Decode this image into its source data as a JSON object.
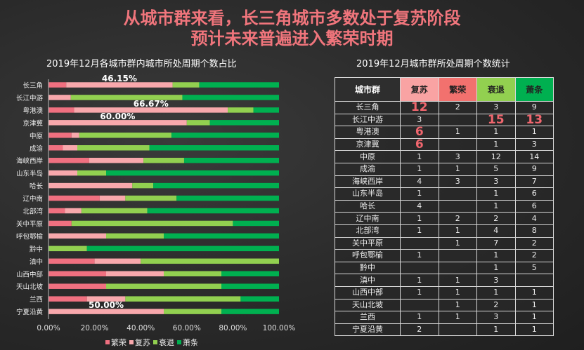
{
  "title_lines": [
    "从城市群来看，长三角城市多数处于复苏阶段",
    "预计未来普遍进入繁荣时期"
  ],
  "chart_data": {
    "type": "bar",
    "orientation": "horizontal",
    "stacked": "percent",
    "title": "2019年12月各城市群内城市所处周期个数占比",
    "categories": [
      "长三角",
      "长江中游",
      "粤港澳",
      "京津冀",
      "中原",
      "成渝",
      "海峡西岸",
      "山东半岛",
      "哈长",
      "辽中南",
      "北部湾",
      "关中平原",
      "呼包鄂榆",
      "黔中",
      "滇中",
      "山西中部",
      "天山北坡",
      "兰西",
      "宁夏沿黄"
    ],
    "series": [
      {
        "name": "繁荣",
        "color": "#f07080",
        "values": [
          7.69,
          0,
          11.11,
          0,
          10,
          6.25,
          17.65,
          0,
          0,
          22.22,
          7.14,
          10,
          0,
          0,
          20,
          25,
          25,
          16.67,
          0
        ]
      },
      {
        "name": "复苏",
        "color": "#f8a8ac",
        "values": [
          46.15,
          9.68,
          66.67,
          60,
          3.33,
          6.25,
          23.53,
          12.5,
          36.36,
          11.11,
          7.14,
          0,
          25,
          0,
          20,
          25,
          0,
          16.67,
          50
        ]
      },
      {
        "name": "衰退",
        "color": "#92d050",
        "values": [
          11.54,
          48.39,
          11.11,
          10,
          40,
          31.25,
          17.65,
          12.5,
          9.09,
          22.22,
          28.57,
          70,
          25,
          16.67,
          60,
          25,
          50,
          50,
          25
        ]
      },
      {
        "name": "萧条",
        "color": "#00b050",
        "values": [
          34.62,
          41.94,
          11.11,
          30,
          46.67,
          56.25,
          41.18,
          75,
          54.55,
          44.44,
          57.14,
          20,
          50,
          83.33,
          0,
          25,
          25,
          16.67,
          25
        ]
      }
    ],
    "data_labels": [
      {
        "category": "长三角",
        "series": "复苏",
        "text": "46.15%"
      },
      {
        "category": "粤港澳",
        "series": "复苏",
        "text": "66.67%"
      },
      {
        "category": "京津冀",
        "series": "复苏",
        "text": "60.00%"
      },
      {
        "category": "宁夏沿黄",
        "series": "复苏",
        "text": "50.00%"
      }
    ],
    "xlim": [
      0,
      100
    ],
    "xticks": [
      "0.00%",
      "20.00%",
      "40.00%",
      "60.00%",
      "80.00%",
      "100.00%"
    ],
    "grid": false,
    "legend": "bottom"
  },
  "table": {
    "title": "2019年12月城市群所处周期个数统计",
    "headers": [
      "城市群",
      "复苏",
      "繁荣",
      "衰退",
      "萧条"
    ],
    "header_colors": [
      "#2e2e2e",
      "#f9a3a3",
      "#f2716e",
      "#92d050",
      "#00b050"
    ],
    "rows": [
      [
        "长三角",
        "12",
        "2",
        "3",
        "9"
      ],
      [
        "长江中游",
        "3",
        "",
        "15",
        "13"
      ],
      [
        "粤港澳",
        "6",
        "1",
        "1",
        "1"
      ],
      [
        "京津冀",
        "6",
        "",
        "1",
        "3"
      ],
      [
        "中原",
        "1",
        "3",
        "12",
        "14"
      ],
      [
        "成渝",
        "1",
        "1",
        "5",
        "9"
      ],
      [
        "海峡西岸",
        "4",
        "3",
        "3",
        "7"
      ],
      [
        "山东半岛",
        "1",
        "",
        "1",
        "6"
      ],
      [
        "哈长",
        "4",
        "",
        "1",
        "6"
      ],
      [
        "辽中南",
        "1",
        "2",
        "2",
        "4"
      ],
      [
        "北部湾",
        "1",
        "1",
        "4",
        "8"
      ],
      [
        "关中平原",
        "",
        "1",
        "7",
        "2"
      ],
      [
        "呼包鄂榆",
        "1",
        "",
        "1",
        "2"
      ],
      [
        "黔中",
        "",
        "",
        "1",
        "5"
      ],
      [
        "滇中",
        "1",
        "1",
        "3",
        ""
      ],
      [
        "山西中部",
        "1",
        "1",
        "1",
        "1"
      ],
      [
        "天山北坡",
        "",
        "1",
        "2",
        "1"
      ],
      [
        "兰西",
        "1",
        "1",
        "3",
        "1"
      ],
      [
        "宁夏沿黄",
        "2",
        "",
        "1",
        "1"
      ]
    ],
    "highlight": [
      [
        0,
        1
      ],
      [
        1,
        3
      ],
      [
        1,
        4
      ],
      [
        2,
        1
      ],
      [
        3,
        1
      ]
    ],
    "highlight_color": "#f0666e"
  }
}
